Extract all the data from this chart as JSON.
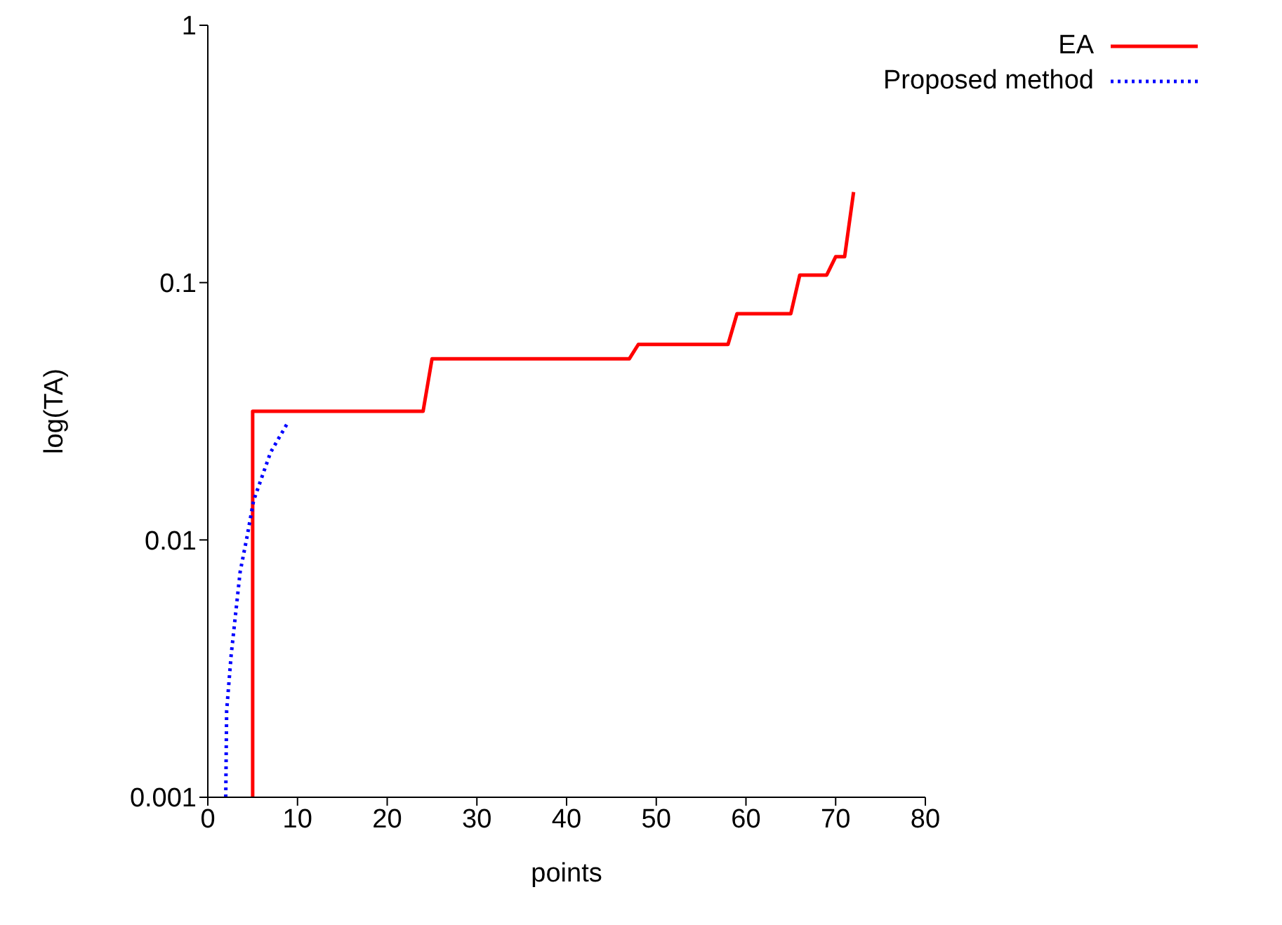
{
  "chart_data": {
    "type": "line",
    "xlabel": "points",
    "ylabel": "log(TA)",
    "log": "y",
    "xlim": [
      0,
      80
    ],
    "xticks": [
      0,
      10,
      20,
      30,
      40,
      50,
      60,
      70,
      80
    ],
    "ylim": [
      0.001,
      1
    ],
    "yticks": [
      0.001,
      0.01,
      0.1,
      1
    ],
    "legend": "top right",
    "grid": false,
    "marker": "none",
    "series": [
      {
        "name": "EA",
        "color": "#ff0000",
        "line_style": "solid",
        "x": [
          5,
          5,
          24,
          25,
          47,
          48,
          58,
          59,
          65,
          66,
          69,
          70,
          71,
          72
        ],
        "values": [
          0.001,
          0.0316,
          0.0316,
          0.0506,
          0.0506,
          0.0575,
          0.0575,
          0.0757,
          0.0757,
          0.107,
          0.107,
          0.126,
          0.126,
          0.225
        ]
      },
      {
        "name": "Proposed method",
        "color": "#0000ff",
        "line_style": "dotted",
        "x": [
          2.0,
          2.05,
          2.1,
          2.6,
          3.6,
          4.4,
          5.1,
          7.0,
          9.0
        ],
        "values": [
          0.001,
          0.0015,
          0.00217,
          0.00356,
          0.0075,
          0.0104,
          0.0142,
          0.0219,
          0.0289
        ]
      }
    ]
  }
}
